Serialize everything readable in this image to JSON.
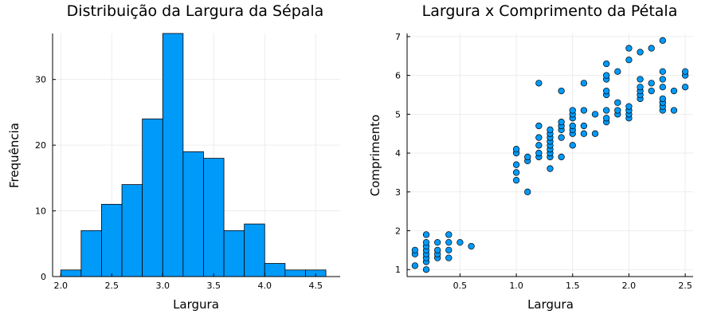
{
  "chart_data": [
    {
      "type": "bar",
      "title": "Distribuição da Largura da Sépala",
      "xlabel": "Largura",
      "ylabel": "Frequência",
      "bin_width": 0.2,
      "bins": [
        {
          "start": 2.0,
          "count": 1
        },
        {
          "start": 2.2,
          "count": 7
        },
        {
          "start": 2.4,
          "count": 11
        },
        {
          "start": 2.6,
          "count": 14
        },
        {
          "start": 2.8,
          "count": 24
        },
        {
          "start": 3.0,
          "count": 37
        },
        {
          "start": 3.2,
          "count": 19
        },
        {
          "start": 3.4,
          "count": 18
        },
        {
          "start": 3.6,
          "count": 7
        },
        {
          "start": 3.8,
          "count": 8
        },
        {
          "start": 4.0,
          "count": 2
        },
        {
          "start": 4.2,
          "count": 1
        },
        {
          "start": 4.4,
          "count": 1
        }
      ],
      "xlim": [
        1.92,
        4.74
      ],
      "ylim": [
        0,
        37
      ],
      "xticks": [
        "2.0",
        "2.5",
        "3.0",
        "3.5",
        "4.0",
        "4.5"
      ],
      "yticks": [
        "0",
        "10",
        "20",
        "30"
      ],
      "grid": true,
      "legend": false
    },
    {
      "type": "scatter",
      "title": "Largura x Comprimento da Pétala",
      "xlabel": "Largura",
      "ylabel": "Comprimento",
      "xlim": [
        0.03,
        2.57
      ],
      "ylim": [
        0.82,
        7.08
      ],
      "xticks": [
        "0.5",
        "1.0",
        "1.5",
        "2.0",
        "2.5"
      ],
      "yticks": [
        "1",
        "2",
        "3",
        "4",
        "5",
        "6",
        "7"
      ],
      "grid": true,
      "legend": false,
      "points": [
        [
          0.1,
          1.1
        ],
        [
          0.1,
          1.4
        ],
        [
          0.1,
          1.5
        ],
        [
          0.2,
          1.0
        ],
        [
          0.2,
          1.2
        ],
        [
          0.2,
          1.3
        ],
        [
          0.2,
          1.4
        ],
        [
          0.2,
          1.5
        ],
        [
          0.2,
          1.6
        ],
        [
          0.2,
          1.7
        ],
        [
          0.2,
          1.9
        ],
        [
          0.3,
          1.3
        ],
        [
          0.3,
          1.4
        ],
        [
          0.3,
          1.5
        ],
        [
          0.3,
          1.7
        ],
        [
          0.4,
          1.3
        ],
        [
          0.4,
          1.5
        ],
        [
          0.4,
          1.7
        ],
        [
          0.4,
          1.9
        ],
        [
          0.5,
          1.7
        ],
        [
          0.6,
          1.6
        ],
        [
          1.0,
          3.3
        ],
        [
          1.0,
          3.5
        ],
        [
          1.0,
          3.7
        ],
        [
          1.0,
          4.0
        ],
        [
          1.0,
          4.1
        ],
        [
          1.1,
          3.0
        ],
        [
          1.1,
          3.8
        ],
        [
          1.1,
          3.9
        ],
        [
          1.2,
          3.9
        ],
        [
          1.2,
          4.0
        ],
        [
          1.2,
          4.4
        ],
        [
          1.2,
          4.7
        ],
        [
          1.2,
          4.2
        ],
        [
          1.2,
          5.8
        ],
        [
          1.3,
          3.6
        ],
        [
          1.3,
          3.9
        ],
        [
          1.3,
          4.0
        ],
        [
          1.3,
          4.1
        ],
        [
          1.3,
          4.2
        ],
        [
          1.3,
          4.3
        ],
        [
          1.3,
          4.4
        ],
        [
          1.3,
          4.5
        ],
        [
          1.3,
          4.6
        ],
        [
          1.4,
          3.9
        ],
        [
          1.4,
          4.4
        ],
        [
          1.4,
          4.6
        ],
        [
          1.4,
          4.7
        ],
        [
          1.4,
          4.8
        ],
        [
          1.4,
          5.6
        ],
        [
          1.5,
          4.2
        ],
        [
          1.5,
          4.5
        ],
        [
          1.5,
          4.6
        ],
        [
          1.5,
          4.7
        ],
        [
          1.5,
          4.9
        ],
        [
          1.5,
          5.0
        ],
        [
          1.5,
          5.1
        ],
        [
          1.6,
          4.5
        ],
        [
          1.6,
          4.7
        ],
        [
          1.6,
          5.1
        ],
        [
          1.6,
          5.8
        ],
        [
          1.7,
          4.5
        ],
        [
          1.7,
          5.0
        ],
        [
          1.8,
          4.8
        ],
        [
          1.8,
          4.9
        ],
        [
          1.8,
          5.1
        ],
        [
          1.8,
          5.5
        ],
        [
          1.8,
          5.6
        ],
        [
          1.8,
          5.9
        ],
        [
          1.8,
          6.0
        ],
        [
          1.8,
          6.3
        ],
        [
          1.9,
          5.0
        ],
        [
          1.9,
          5.1
        ],
        [
          1.9,
          5.3
        ],
        [
          1.9,
          6.1
        ],
        [
          2.0,
          4.9
        ],
        [
          2.0,
          5.0
        ],
        [
          2.0,
          5.1
        ],
        [
          2.0,
          5.2
        ],
        [
          2.0,
          6.4
        ],
        [
          2.0,
          6.7
        ],
        [
          2.1,
          5.4
        ],
        [
          2.1,
          5.5
        ],
        [
          2.1,
          5.6
        ],
        [
          2.1,
          5.7
        ],
        [
          2.1,
          5.9
        ],
        [
          2.1,
          6.6
        ],
        [
          2.2,
          5.6
        ],
        [
          2.2,
          5.8
        ],
        [
          2.2,
          6.7
        ],
        [
          2.3,
          5.1
        ],
        [
          2.3,
          5.2
        ],
        [
          2.3,
          5.3
        ],
        [
          2.3,
          5.4
        ],
        [
          2.3,
          5.7
        ],
        [
          2.3,
          5.9
        ],
        [
          2.3,
          6.1
        ],
        [
          2.3,
          6.9
        ],
        [
          2.4,
          5.1
        ],
        [
          2.4,
          5.6
        ],
        [
          2.5,
          5.7
        ],
        [
          2.5,
          6.0
        ],
        [
          2.5,
          6.1
        ]
      ]
    }
  ]
}
